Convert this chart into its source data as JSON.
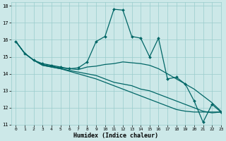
{
  "xlabel": "Humidex (Indice chaleur)",
  "xlim": [
    -0.5,
    23
  ],
  "ylim": [
    11,
    18.2
  ],
  "xticks": [
    0,
    1,
    2,
    3,
    4,
    5,
    6,
    7,
    8,
    9,
    10,
    11,
    12,
    13,
    14,
    15,
    16,
    17,
    18,
    19,
    20,
    21,
    22,
    23
  ],
  "yticks": [
    11,
    12,
    13,
    14,
    15,
    16,
    17,
    18
  ],
  "background_color": "#cce8e8",
  "grid_color": "#99cccc",
  "line_color": "#006666",
  "lines": [
    {
      "x": [
        0,
        1,
        2,
        3,
        4,
        5,
        6,
        7,
        8,
        9,
        10,
        11,
        12,
        13,
        14,
        15,
        16,
        17,
        18,
        19,
        20,
        21,
        22,
        23
      ],
      "y": [
        15.9,
        15.2,
        14.8,
        14.6,
        14.5,
        14.4,
        14.3,
        14.35,
        14.7,
        15.9,
        16.2,
        17.8,
        17.75,
        16.2,
        16.1,
        15.0,
        16.1,
        13.7,
        13.8,
        13.4,
        12.4,
        11.15,
        12.2,
        11.75
      ],
      "marker": true,
      "markersize": 2.0
    },
    {
      "x": [
        0,
        1,
        2,
        3,
        4,
        5,
        6,
        7,
        8,
        9,
        10,
        11,
        12,
        13,
        14,
        15,
        16,
        17,
        18,
        19,
        20,
        21,
        22,
        23
      ],
      "y": [
        15.9,
        15.2,
        14.8,
        14.55,
        14.45,
        14.35,
        14.3,
        14.25,
        14.4,
        14.45,
        14.55,
        14.6,
        14.7,
        14.65,
        14.6,
        14.5,
        14.3,
        14.0,
        13.7,
        13.4,
        13.1,
        12.7,
        12.3,
        11.8
      ],
      "marker": false,
      "markersize": 0
    },
    {
      "x": [
        0,
        1,
        2,
        3,
        4,
        5,
        6,
        7,
        8,
        9,
        10,
        11,
        12,
        13,
        14,
        15,
        16,
        17,
        18,
        19,
        20,
        21,
        22,
        23
      ],
      "y": [
        15.9,
        15.2,
        14.8,
        14.5,
        14.4,
        14.3,
        14.2,
        14.1,
        14.0,
        13.9,
        13.7,
        13.5,
        13.4,
        13.3,
        13.1,
        13.0,
        12.8,
        12.6,
        12.4,
        12.2,
        12.0,
        11.8,
        11.7,
        11.75
      ],
      "marker": false,
      "markersize": 0
    },
    {
      "x": [
        0,
        1,
        2,
        3,
        4,
        5,
        6,
        7,
        8,
        9,
        10,
        11,
        12,
        13,
        14,
        15,
        16,
        17,
        18,
        19,
        20,
        21,
        22,
        23
      ],
      "y": [
        15.9,
        15.2,
        14.8,
        14.5,
        14.4,
        14.3,
        14.15,
        14.0,
        13.85,
        13.7,
        13.5,
        13.3,
        13.1,
        12.9,
        12.7,
        12.5,
        12.3,
        12.1,
        11.9,
        11.8,
        11.75,
        11.75,
        11.75,
        11.75
      ],
      "marker": false,
      "markersize": 0
    }
  ]
}
